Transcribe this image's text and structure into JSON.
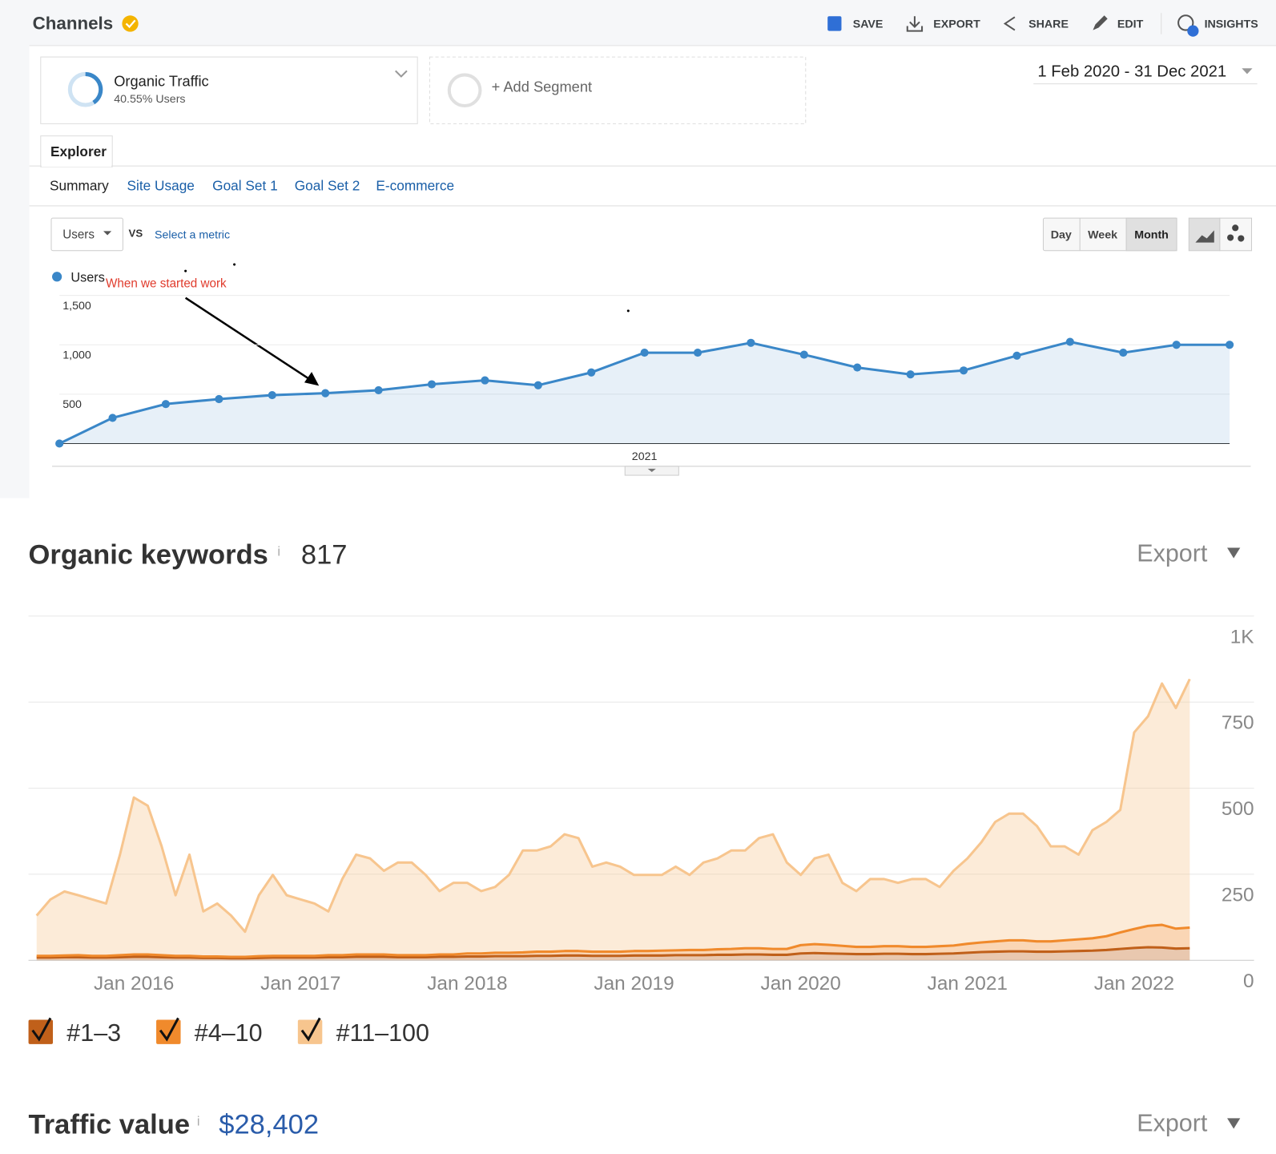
{
  "header": {
    "title": "Channels",
    "actions": [
      "SAVE",
      "EXPORT",
      "SHARE",
      "EDIT",
      "INSIGHTS"
    ]
  },
  "segments": {
    "segment": {
      "name": "Organic Traffic",
      "detail": "40.55% Users"
    },
    "add": "+ Add Segment"
  },
  "date_range": "1 Feb 2020 - 31 Dec 2021",
  "tabs": [
    "Explorer"
  ],
  "subtabs": [
    "Summary",
    "Site Usage",
    "Goal Set 1",
    "Goal Set 2",
    "E-commerce"
  ],
  "metric": {
    "selected": "Users",
    "vs": "VS",
    "select": "Select a metric"
  },
  "granularity": [
    "Day",
    "Week",
    "Month"
  ],
  "keywords": {
    "title": "Organic keywords",
    "info": "i",
    "count": "817",
    "export": "Export"
  },
  "traffic_value": {
    "title": "Traffic value",
    "info": "i",
    "amount": "$28,402",
    "export": "Export"
  },
  "chart_data": [
    {
      "type": "area",
      "annotation": "When we started work",
      "categories": [
        null,
        null,
        null,
        null,
        null,
        null,
        null,
        null,
        null,
        null,
        null,
        "2021",
        null,
        null,
        null,
        null,
        null,
        null,
        null,
        null,
        null,
        null,
        null
      ],
      "series": [
        {
          "name": "Users",
          "color": "#3a87c8",
          "values": [
            0,
            260,
            400,
            450,
            490,
            510,
            540,
            600,
            640,
            590,
            720,
            920,
            920,
            1020,
            900,
            770,
            700,
            740,
            890,
            1030,
            920,
            1000,
            1000
          ]
        }
      ],
      "ylim": [
        0,
        1500
      ],
      "yticks": [
        500,
        {
          "value": 1000,
          "label": "1,000"
        },
        {
          "value": 1500,
          "label": "1,500"
        }
      ],
      "grid": true
    },
    {
      "type": "area",
      "stacked": true,
      "x": [
        "Jun 2015",
        "Jul 2015",
        "Aug 2015",
        "Sep 2015",
        "Oct 2015",
        "Nov 2015",
        "Dec 2015",
        "Jan 2016",
        "Feb 2016",
        "Mar 2016",
        "Apr 2016",
        "May 2016",
        "Jun 2016",
        "Jul 2016",
        "Aug 2016",
        "Sep 2016",
        "Oct 2016",
        "Nov 2016",
        "Dec 2016",
        "Jan 2017",
        "Feb 2017",
        "Mar 2017",
        "Apr 2017",
        "May 2017",
        "Jun 2017",
        "Jul 2017",
        "Aug 2017",
        "Sep 2017",
        "Oct 2017",
        "Nov 2017",
        "Dec 2017",
        "Jan 2018",
        "Feb 2018",
        "Mar 2018",
        "Apr 2018",
        "May 2018",
        "Jun 2018",
        "Jul 2018",
        "Aug 2018",
        "Sep 2018",
        "Oct 2018",
        "Nov 2018",
        "Dec 2018",
        "Jan 2019",
        "Feb 2019",
        "Mar 2019",
        "Apr 2019",
        "May 2019",
        "Jun 2019",
        "Jul 2019",
        "Aug 2019",
        "Sep 2019",
        "Oct 2019",
        "Nov 2019",
        "Dec 2019",
        "Jan 2020",
        "Feb 2020",
        "Mar 2020",
        "Apr 2020",
        "May 2020",
        "Jun 2020",
        "Jul 2020",
        "Aug 2020",
        "Sep 2020",
        "Oct 2020",
        "Nov 2020",
        "Dec 2020",
        "Jan 2021",
        "Feb 2021",
        "Mar 2021",
        "Apr 2021",
        "May 2021",
        "Jun 2021",
        "Jul 2021",
        "Aug 2021",
        "Sep 2021",
        "Oct 2021",
        "Nov 2021",
        "Dec 2021",
        "Jan 2022",
        "Feb 2022",
        "Mar 2022",
        "Apr 2022",
        "May 2022"
      ],
      "xticks": [
        "Jan 2016",
        "Jan 2017",
        "Jan 2018",
        "Jan 2019",
        "Jan 2020",
        "Jan 2021",
        "Jan 2022"
      ],
      "series": [
        {
          "name": "#1–3",
          "color": "#c0601a",
          "values": [
            8,
            8,
            9,
            9,
            8,
            8,
            9,
            10,
            10,
            9,
            8,
            8,
            7,
            7,
            6,
            6,
            7,
            8,
            8,
            8,
            8,
            9,
            9,
            10,
            10,
            10,
            9,
            9,
            9,
            10,
            10,
            11,
            11,
            12,
            12,
            12,
            13,
            13,
            14,
            14,
            13,
            13,
            13,
            14,
            14,
            14,
            15,
            15,
            15,
            16,
            16,
            17,
            17,
            16,
            16,
            20,
            21,
            20,
            19,
            18,
            18,
            19,
            19,
            18,
            18,
            19,
            20,
            22,
            24,
            25,
            26,
            26,
            25,
            25,
            26,
            27,
            28,
            30,
            33,
            36,
            38,
            37,
            34,
            35
          ]
        },
        {
          "name": "#4–10",
          "color": "#f08a2c",
          "values": [
            5,
            5,
            5,
            6,
            5,
            5,
            6,
            7,
            7,
            6,
            5,
            5,
            4,
            4,
            4,
            4,
            5,
            5,
            5,
            5,
            5,
            6,
            6,
            7,
            7,
            7,
            6,
            6,
            6,
            7,
            7,
            9,
            9,
            10,
            10,
            11,
            12,
            12,
            13,
            13,
            12,
            12,
            12,
            13,
            13,
            14,
            14,
            15,
            15,
            16,
            17,
            18,
            18,
            17,
            17,
            24,
            26,
            25,
            23,
            21,
            21,
            22,
            22,
            21,
            21,
            22,
            23,
            26,
            28,
            30,
            32,
            32,
            30,
            30,
            32,
            34,
            36,
            40,
            48,
            55,
            62,
            66,
            58,
            60
          ]
        },
        {
          "name": "#11–100",
          "color": "#f7c58e",
          "values": [
            117,
            164,
            186,
            174,
            164,
            152,
            292,
            456,
            432,
            316,
            176,
            294,
            131,
            154,
            120,
            73,
            177,
            235,
            176,
            164,
            152,
            127,
            221,
            290,
            279,
            243,
            269,
            269,
            233,
            184,
            208,
            205,
            181,
            191,
            226,
            296,
            294,
            306,
            339,
            328,
            247,
            259,
            247,
            221,
            221,
            220,
            243,
            218,
            254,
            264,
            286,
            284,
            320,
            333,
            251,
            204,
            249,
            262,
            183,
            162,
            197,
            195,
            184,
            197,
            197,
            172,
            217,
            248,
            291,
            347,
            368,
            368,
            335,
            276,
            273,
            246,
            314,
            332,
            356,
            571,
            609,
            701,
            641,
            722
          ]
        }
      ],
      "ylim": [
        0,
        1000
      ],
      "yticks": [
        0,
        250,
        500,
        750,
        {
          "value": 1000,
          "label": "1K"
        }
      ],
      "grid": true
    }
  ]
}
